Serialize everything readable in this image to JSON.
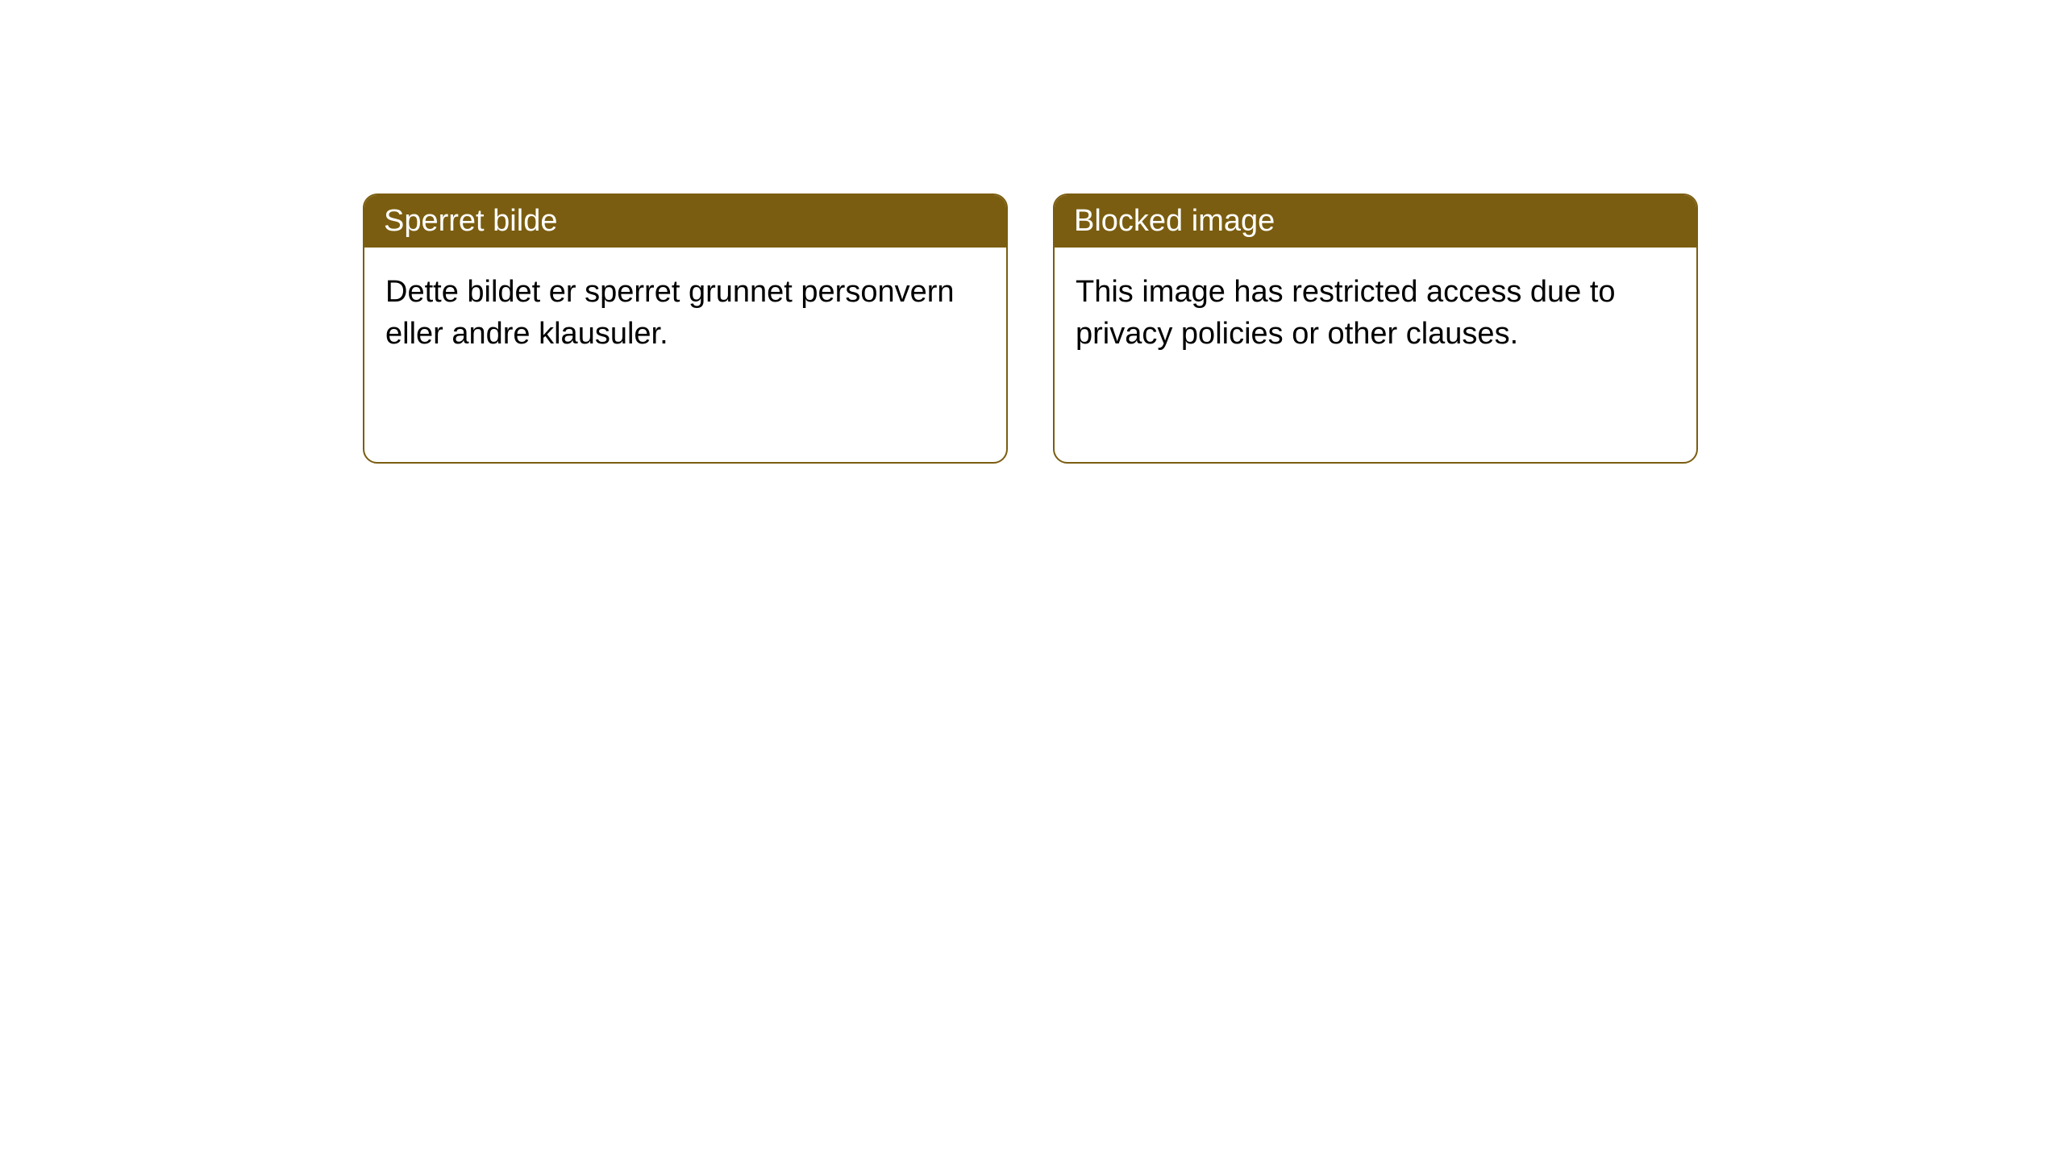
{
  "notices": [
    {
      "title": "Sperret bilde",
      "body": "Dette bildet er sperret grunnet personvern eller andre klausuler."
    },
    {
      "title": "Blocked image",
      "body": "This image has restricted access due to privacy policies or other clauses."
    }
  ],
  "style": {
    "header_bg": "#7a5d10",
    "header_text_color": "#ffffff",
    "border_color": "#7a5d10",
    "body_bg": "#ffffff",
    "body_text_color": "#000000",
    "border_radius": 18,
    "title_fontsize": 38,
    "body_fontsize": 38
  }
}
